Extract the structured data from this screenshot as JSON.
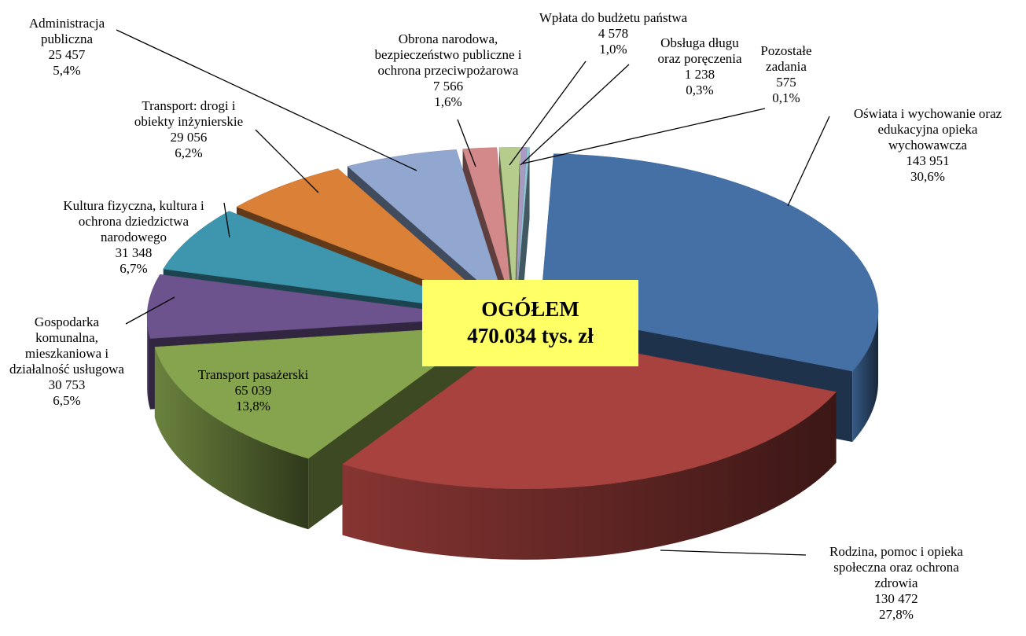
{
  "chart_data": {
    "type": "pie3d",
    "categories": [
      "Oświata i wychowanie oraz\nedukacyjna opieka\nwychowawcza",
      "Rodzina, pomoc i opieka\nspołeczna oraz ochrona\nzdrowia",
      "Transport pasażerski",
      "Gospodarka\nkomunalna,\nmieszkaniowa i\ndziałalność usługowa",
      "Kultura fizyczna, kultura i\nochrona dziedzictwa\nnarodowego",
      "Transport: drogi i\nobiekty inżynierskie",
      "Administracja\npubliczna",
      "Obrona narodowa,\nbezpieczeństwo publiczne i\nochrona przeciwpożarowa",
      "Wpłata do budżetu państwa",
      "Obsługa długu\noraz poręczenia",
      "Pozostałe\nzadania"
    ],
    "values": [
      143951,
      130472,
      65039,
      30753,
      31348,
      29056,
      25457,
      7566,
      4578,
      1238,
      575
    ],
    "value_labels": [
      "143 951",
      "130 472",
      "65 039",
      "30 753",
      "31 348",
      "29 056",
      "25 457",
      "7 566",
      "4 578",
      "1 238",
      "575"
    ],
    "percents": [
      30.6,
      27.8,
      13.8,
      6.5,
      6.7,
      6.2,
      5.4,
      1.6,
      1.0,
      0.3,
      0.1
    ],
    "percent_labels": [
      "30,6%",
      "27,8%",
      "13,8%",
      "6,5%",
      "6,7%",
      "6,2%",
      "5,4%",
      "1,6%",
      "1,0%",
      "0,3%",
      "0,1%"
    ],
    "colors": [
      "#4470a6",
      "#a8423f",
      "#86a34d",
      "#6c538d",
      "#3d96ad",
      "#da8137",
      "#91a7d0",
      "#d3898a",
      "#b6cc8d",
      "#a99ac2",
      "#93c5d8"
    ],
    "center_title": "OGÓŁEM",
    "total": 470034,
    "total_label": "470.034 tys. zł"
  }
}
